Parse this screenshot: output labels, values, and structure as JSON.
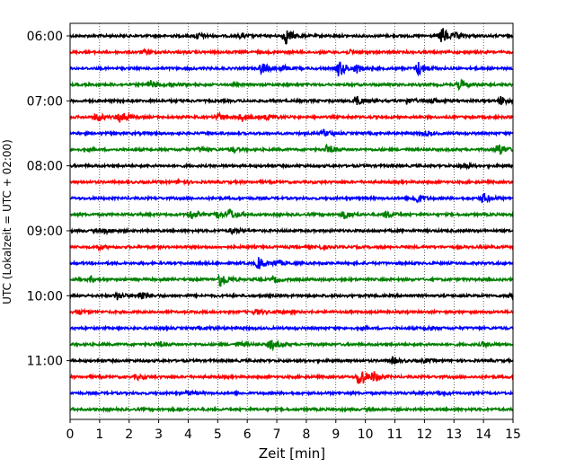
{
  "chart_data": {
    "type": "line",
    "xlabel": "Zeit  [min]",
    "ylabel": "UTC (Lokalzeit = UTC + 02:00)",
    "xlim": [
      0,
      15
    ],
    "x_ticks": [
      "0",
      "1",
      "2",
      "3",
      "4",
      "5",
      "6",
      "7",
      "8",
      "9",
      "10",
      "11",
      "12",
      "13",
      "14",
      "15"
    ],
    "y_ticks": [
      {
        "label": "06:00",
        "row": 0
      },
      {
        "label": "07:00",
        "row": 4
      },
      {
        "label": "08:00",
        "row": 8
      },
      {
        "label": "09:00",
        "row": 12
      },
      {
        "label": "10:00",
        "row": 16
      },
      {
        "label": "11:00",
        "row": 20
      }
    ],
    "grid_x": true,
    "row_colors": [
      "#000000",
      "#ff0000",
      "#0000ff",
      "#008000"
    ],
    "rows": [
      {
        "time": "06:00",
        "color": "#000000",
        "bursts": [
          [
            4.3,
            0.6
          ],
          [
            5.8,
            0.4
          ],
          [
            7.3,
            1.6
          ],
          [
            12.6,
            1.7
          ],
          [
            13.1,
            0.4
          ]
        ]
      },
      {
        "time": "06:15",
        "color": "#ff0000",
        "bursts": [
          [
            2.5,
            0.3
          ],
          [
            9.5,
            0.3
          ]
        ]
      },
      {
        "time": "06:30",
        "color": "#0000ff",
        "bursts": [
          [
            6.5,
            1.1
          ],
          [
            7.2,
            0.5
          ],
          [
            9.1,
            1.7
          ],
          [
            9.7,
            0.8
          ],
          [
            11.8,
            1.4
          ]
        ]
      },
      {
        "time": "06:45",
        "color": "#008000",
        "bursts": [
          [
            2.7,
            0.8
          ],
          [
            3.4,
            0.4
          ],
          [
            13.2,
            0.9
          ]
        ]
      },
      {
        "time": "07:00",
        "color": "#000000",
        "bursts": [
          [
            9.7,
            0.9
          ],
          [
            11.4,
            0.6
          ],
          [
            12.2,
            0.5
          ],
          [
            14.6,
            0.9
          ]
        ]
      },
      {
        "time": "07:15",
        "color": "#ff0000",
        "bursts": [
          [
            0.9,
            0.9
          ],
          [
            1.7,
            1.3
          ],
          [
            5.0,
            0.7
          ],
          [
            5.8,
            0.7
          ],
          [
            6.7,
            0.5
          ]
        ]
      },
      {
        "time": "07:30",
        "color": "#0000ff",
        "bursts": [
          [
            8.6,
            0.6
          ],
          [
            12.0,
            0.4
          ]
        ]
      },
      {
        "time": "07:45",
        "color": "#008000",
        "bursts": [
          [
            4.4,
            0.4
          ],
          [
            5.5,
            0.4
          ],
          [
            8.7,
            0.8
          ],
          [
            14.5,
            1.2
          ]
        ]
      },
      {
        "time": "08:00",
        "color": "#000000",
        "bursts": [
          [
            13.3,
            0.6
          ]
        ]
      },
      {
        "time": "08:15",
        "color": "#ff0000",
        "bursts": [
          [
            3.7,
            0.3
          ]
        ]
      },
      {
        "time": "08:30",
        "color": "#0000ff",
        "bursts": [
          [
            11.7,
            1.1
          ],
          [
            14.0,
            1.0
          ]
        ]
      },
      {
        "time": "08:45",
        "color": "#008000",
        "bursts": [
          [
            4.1,
            0.9
          ],
          [
            5.4,
            1.1
          ],
          [
            5.0,
            0.5
          ],
          [
            9.3,
            0.8
          ],
          [
            10.7,
            0.6
          ]
        ]
      },
      {
        "time": "09:00",
        "color": "#000000",
        "bursts": [
          [
            1.2,
            0.4
          ],
          [
            5.5,
            0.5
          ]
        ]
      },
      {
        "time": "09:15",
        "color": "#ff0000",
        "bursts": [
          [
            1.0,
            0.3
          ],
          [
            8.4,
            0.3
          ]
        ]
      },
      {
        "time": "09:30",
        "color": "#0000ff",
        "bursts": [
          [
            6.4,
            1.2
          ],
          [
            7.0,
            0.6
          ]
        ]
      },
      {
        "time": "09:45",
        "color": "#008000",
        "bursts": [
          [
            0.7,
            0.5
          ],
          [
            5.1,
            1.6
          ],
          [
            6.9,
            0.5
          ]
        ]
      },
      {
        "time": "10:00",
        "color": "#000000",
        "bursts": [
          [
            1.6,
            0.7
          ],
          [
            2.4,
            1.0
          ],
          [
            14.9,
            0.5
          ]
        ]
      },
      {
        "time": "10:15",
        "color": "#ff0000",
        "bursts": [
          [
            0.3,
            0.5
          ],
          [
            6.3,
            0.5
          ],
          [
            7.0,
            0.3
          ]
        ]
      },
      {
        "time": "10:30",
        "color": "#0000ff",
        "bursts": [
          [
            4.7,
            0.3
          ],
          [
            12.1,
            0.3
          ]
        ]
      },
      {
        "time": "10:45",
        "color": "#008000",
        "bursts": [
          [
            3.0,
            0.4
          ],
          [
            5.7,
            0.4
          ],
          [
            6.8,
            1.0
          ],
          [
            14.0,
            0.4
          ]
        ]
      },
      {
        "time": "11:00",
        "color": "#000000",
        "bursts": [
          [
            10.9,
            0.6
          ],
          [
            12.0,
            0.3
          ]
        ]
      },
      {
        "time": "11:15",
        "color": "#ff0000",
        "bursts": [
          [
            2.3,
            0.4
          ],
          [
            9.8,
            2.2
          ],
          [
            10.3,
            0.9
          ]
        ]
      },
      {
        "time": "11:30",
        "color": "#0000ff",
        "bursts": [
          [
            4.0,
            0.3
          ],
          [
            12.5,
            0.3
          ]
        ]
      },
      {
        "time": "11:45",
        "color": "#008000",
        "bursts": []
      }
    ]
  }
}
